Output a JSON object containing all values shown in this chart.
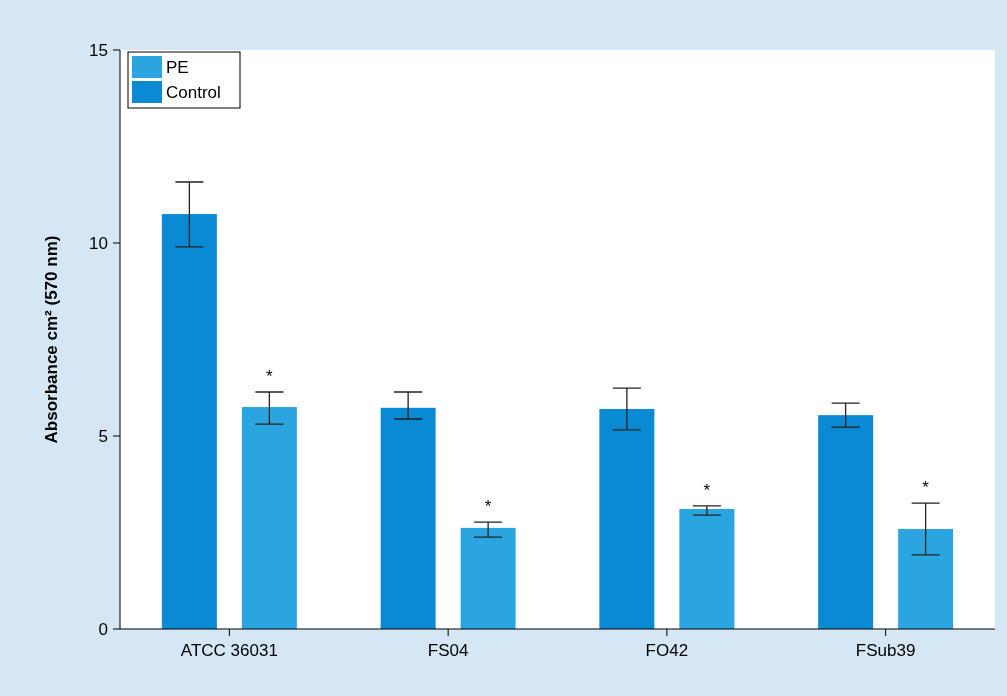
{
  "chart_data": {
    "type": "bar",
    "ylabel": "Absorbance cm² (570 nm)",
    "categories": [
      "ATCC 36031",
      "FS04",
      "FO42",
      "FSub39"
    ],
    "series": [
      {
        "name": "Control",
        "color": "#0a8ad3",
        "values": [
          10.75,
          5.73,
          5.7,
          5.54
        ],
        "errors": [
          [
            9.9,
            11.58
          ],
          [
            5.44,
            6.14
          ],
          [
            5.16,
            6.24
          ],
          [
            5.23,
            5.85
          ]
        ]
      },
      {
        "name": "PE",
        "color": "#2ba5df",
        "values": [
          5.75,
          2.62,
          3.11,
          2.59
        ],
        "errors": [
          [
            5.31,
            6.14
          ],
          [
            2.38,
            2.77
          ],
          [
            2.95,
            3.19
          ],
          [
            1.92,
            3.26
          ]
        ]
      }
    ],
    "ylim": [
      0,
      15
    ],
    "yticks": [
      0,
      5,
      10,
      15
    ],
    "grid": false,
    "legend": "top left",
    "annotations": [
      "*",
      "*",
      "*",
      "*"
    ]
  }
}
